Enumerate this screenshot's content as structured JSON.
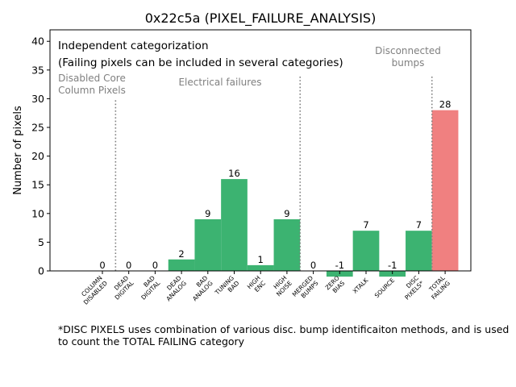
{
  "chart_data": {
    "type": "bar",
    "title": "0x22c5a (PIXEL_FAILURE_ANALYSIS)",
    "xlabel": "",
    "ylabel": "Number of pixels",
    "ylim": [
      0,
      42
    ],
    "yticks": [
      0,
      5,
      10,
      15,
      20,
      25,
      30,
      35,
      40
    ],
    "categories": [
      "COLUMN\nDISABLED",
      "DEAD\nDIGITAL",
      "BAD\nDIGITAL",
      "DEAD\nANALOG",
      "BAD\nANALOG",
      "TUNING\nBAD",
      "HIGH\nENC",
      "HIGH\nNOISE",
      "MERGED\nBUMPS",
      "ZERO\nBIAS",
      "XTALK",
      "SOURCE",
      "DISC\nPIXELS*",
      "TOTAL\nFAILING"
    ],
    "values": [
      0,
      0,
      0,
      2,
      9,
      16,
      1,
      9,
      0,
      -1,
      7,
      -1,
      7,
      28
    ],
    "value_labels": [
      "0",
      "0",
      "0",
      "2",
      "9",
      "16",
      "1",
      "9",
      "0",
      "-1",
      "7",
      "-1",
      "7",
      "28"
    ],
    "bar_colors": [
      "#3cb371",
      "#3cb371",
      "#3cb371",
      "#3cb371",
      "#3cb371",
      "#3cb371",
      "#3cb371",
      "#3cb371",
      "#3cb371",
      "#3cb371",
      "#3cb371",
      "#3cb371",
      "#3cb371",
      "#f08080"
    ],
    "separators": [
      {
        "after_category": 0,
        "top_value": 30
      },
      {
        "after_category": 7,
        "top_value": 34
      },
      {
        "after_category": 12,
        "top_value": 34
      }
    ],
    "legend_text": [
      "Independent categorization",
      "(Failing pixels can be included in several categories)"
    ],
    "group_labels": [
      {
        "text": [
          "Disabled Core",
          "Column Pixels"
        ]
      },
      {
        "text": [
          "Electrical failures"
        ]
      },
      {
        "text": [
          "Disconnected",
          "bumps"
        ]
      }
    ],
    "grid": false
  },
  "footnote": [
    "*DISC PIXELS uses combination of various disc. bump identificaiton methods, and is used",
    "to count the TOTAL FAILING category"
  ],
  "colors": {
    "bar": "#3cb371",
    "total": "#f08080",
    "group_text": "#808080",
    "separator": "#808080"
  }
}
